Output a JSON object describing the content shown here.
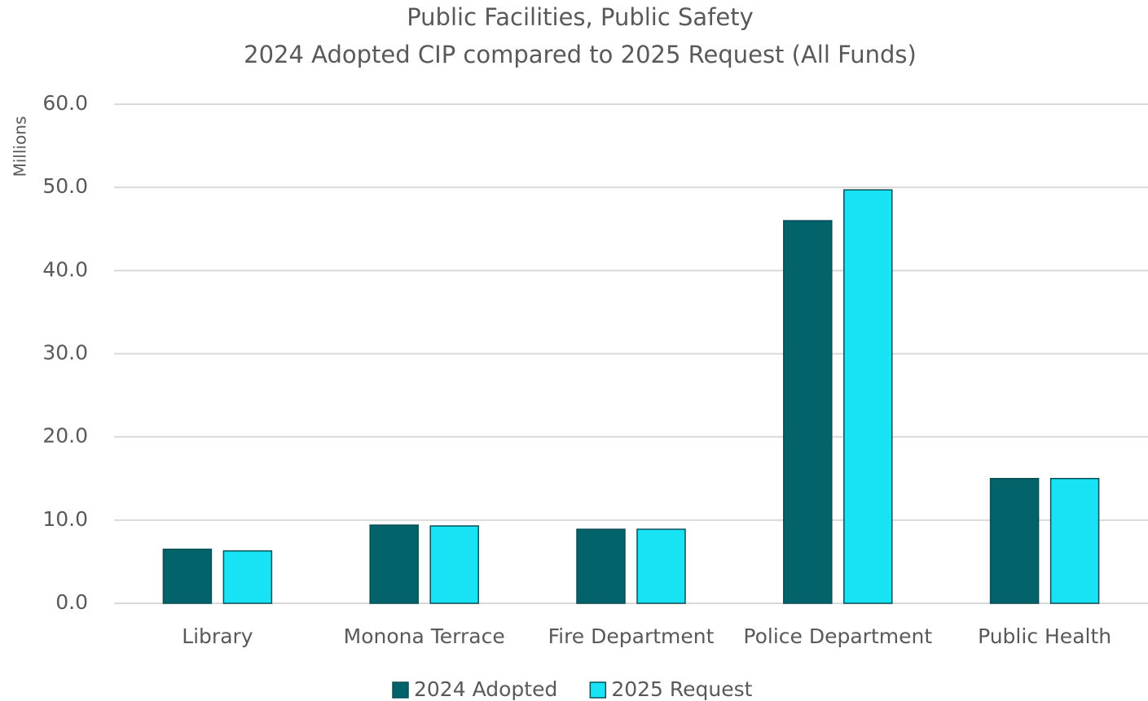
{
  "chart_data": {
    "type": "bar",
    "title": [
      "Public Facilities, Public Safety",
      "2024 Adopted CIP compared to 2025 Request (All Funds)"
    ],
    "y_label": "Millions",
    "categories": [
      "Library",
      "Monona Terrace",
      "Fire Department",
      "Police Department",
      "Public Health"
    ],
    "series": [
      {
        "name": "2024 Adopted",
        "color": "#02636b",
        "values": [
          6.5,
          9.4,
          8.9,
          46.0,
          15.0
        ]
      },
      {
        "name": "2025 Request",
        "color": "#17e3f5",
        "values": [
          6.3,
          9.3,
          8.9,
          49.7,
          15.0
        ]
      }
    ],
    "ylim": [
      0,
      60
    ],
    "yticks": [
      {
        "value": 0,
        "label": "0.0"
      },
      {
        "value": 10,
        "label": "10.0"
      },
      {
        "value": 20,
        "label": "20.0"
      },
      {
        "value": 30,
        "label": "30.0"
      },
      {
        "value": 40,
        "label": "40.0"
      },
      {
        "value": 50,
        "label": "50.0"
      },
      {
        "value": 60,
        "label": "60.0"
      }
    ],
    "grid": true,
    "legend": "bottom"
  }
}
